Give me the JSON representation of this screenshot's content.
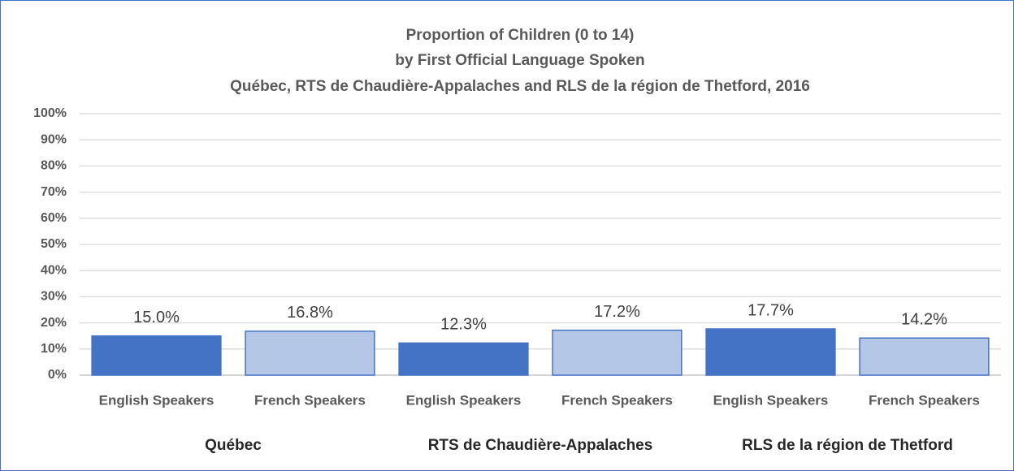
{
  "chart_data": {
    "type": "bar",
    "title": [
      "Proportion of Children (0 to 14)",
      "by First Official Language Spoken",
      "Québec, RTS de Chaudière-Appalaches and RLS de la région de Thetford, 2016"
    ],
    "categories": [
      "Québec",
      "RTS de Chaudière-Appalaches",
      "RLS de la région de Thetford"
    ],
    "series": [
      {
        "name": "English Speakers",
        "color": "#4472c4",
        "values": [
          15.0,
          12.3,
          17.7
        ],
        "value_labels": [
          "15.0%",
          "12.3%",
          "17.7%"
        ]
      },
      {
        "name": "French Speakers",
        "color": "#b4c7e7",
        "values": [
          16.8,
          17.2,
          14.2
        ],
        "value_labels": [
          "16.8%",
          "17.2%",
          "14.2%"
        ]
      }
    ],
    "ylim": [
      0,
      100
    ],
    "yticks": [
      {
        "value": 0,
        "label": "0%"
      },
      {
        "value": 10,
        "label": "10%"
      },
      {
        "value": 20,
        "label": "20%"
      },
      {
        "value": 30,
        "label": "30%"
      },
      {
        "value": 40,
        "label": "40%"
      },
      {
        "value": 50,
        "label": "50%"
      },
      {
        "value": 60,
        "label": "60%"
      },
      {
        "value": 70,
        "label": "70%"
      },
      {
        "value": 80,
        "label": "80%"
      },
      {
        "value": 90,
        "label": "90%"
      },
      {
        "value": 100,
        "label": "100%"
      }
    ],
    "grid": true
  }
}
